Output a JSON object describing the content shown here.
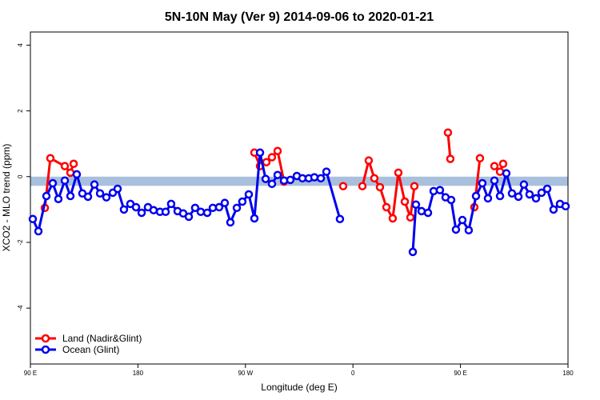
{
  "chart_data": {
    "type": "line",
    "title": "5N-10N May (Ver 9)   2014-09-06 to 2020-01-21",
    "x_label": "Longitude (deg E)",
    "y_label": "XCO2 - MLO trend (ppm)",
    "xlim": [
      90,
      540
    ],
    "ylim": [
      -5.7,
      4.4
    ],
    "xticks": [
      {
        "value": 90,
        "label": "90 E"
      },
      180,
      {
        "value": 270,
        "label": "90 W"
      },
      {
        "value": 360,
        "label": "0"
      },
      {
        "value": 450,
        "label": "90 E"
      },
      {
        "value": 540,
        "label": "180"
      }
    ],
    "yticks": [
      -4,
      -2,
      0,
      2,
      4
    ],
    "band": {
      "ymin": -0.28,
      "ymax": 0,
      "color": "#a9c0dd"
    },
    "legend": "bottom-left",
    "series": [
      {
        "name": "Land (Nadir&Glint)",
        "color": "#ff0000",
        "x": [
          102.1,
          106.7,
          118.8,
          123.5,
          126.2,
          200,
          277.5,
          282.2,
          287.5,
          292.2,
          296.9,
          302.3,
          330,
          351.8,
          360,
          367.9,
          373.2,
          377.9,
          382.6,
          388.0,
          393.3,
          398.0,
          403.4,
          408.1,
          411.4,
          425,
          439.5,
          441.5,
          450,
          461.6,
          466.3,
          470,
          478.4,
          483.1,
          485.7
        ],
        "values": [
          -0.95,
          0.56,
          0.32,
          0.12,
          0.39,
          null,
          0.73,
          0.32,
          0.44,
          0.59,
          0.78,
          -0.15,
          null,
          -0.29,
          null,
          -0.29,
          0.49,
          -0.05,
          -0.32,
          -0.93,
          -1.27,
          0.12,
          -0.76,
          -1.24,
          -0.29,
          null,
          1.34,
          0.54,
          null,
          -0.93,
          0.56,
          null,
          0.32,
          0.15,
          0.39
        ]
      },
      {
        "name": "Ocean (Glint)",
        "color": "#0000ee",
        "x": [
          92.0,
          96.7,
          103.4,
          108.7,
          113.4,
          118.8,
          123.5,
          128.8,
          133.5,
          138.2,
          143.6,
          148.3,
          153.6,
          159.0,
          163.0,
          168.3,
          173.7,
          178.4,
          183.1,
          188.4,
          193.1,
          198.5,
          203.2,
          207.8,
          213.2,
          217.9,
          222.6,
          227.9,
          232.6,
          238.0,
          242.7,
          248.0,
          252.7,
          257.4,
          262.8,
          267.4,
          272.8,
          277.5,
          282.2,
          286.9,
          292.2,
          296.9,
          302.3,
          307.6,
          313.0,
          317.7,
          323.0,
          327.7,
          333.1,
          337.8,
          349.1,
          380,
          410.1,
          412.7,
          417.4,
          422.8,
          427.5,
          432.8,
          437.5,
          442.2,
          446.2,
          451.6,
          456.9,
          463.0,
          468.3,
          473.0,
          478.4,
          483.1,
          488.4,
          493.1,
          498.5,
          503.1,
          507.8,
          513.2,
          517.9,
          522.6,
          527.9,
          533.3,
          538.0
        ],
        "values": [
          -1.29,
          -1.66,
          -0.59,
          -0.2,
          -0.68,
          -0.12,
          -0.59,
          0.07,
          -0.51,
          -0.61,
          -0.24,
          -0.51,
          -0.63,
          -0.49,
          -0.37,
          -1.0,
          -0.83,
          -0.93,
          -1.1,
          -0.93,
          -1.02,
          -1.07,
          -1.07,
          -0.83,
          -1.05,
          -1.12,
          -1.22,
          -0.95,
          -1.07,
          -1.1,
          -0.95,
          -0.93,
          -0.8,
          -1.39,
          -0.95,
          -0.76,
          -0.54,
          -1.27,
          0.73,
          -0.07,
          -0.22,
          0.05,
          -0.12,
          -0.1,
          0.02,
          -0.05,
          -0.05,
          -0.02,
          -0.05,
          0.15,
          -1.29,
          null,
          -2.29,
          -0.85,
          -1.05,
          -1.1,
          -0.44,
          -0.41,
          -0.63,
          -0.71,
          -1.61,
          -1.32,
          -1.63,
          -0.59,
          -0.2,
          -0.66,
          -0.12,
          -0.59,
          0.1,
          -0.51,
          -0.61,
          -0.24,
          -0.54,
          -0.66,
          -0.49,
          -0.37,
          -1.0,
          -0.83,
          -0.9
        ]
      }
    ]
  }
}
